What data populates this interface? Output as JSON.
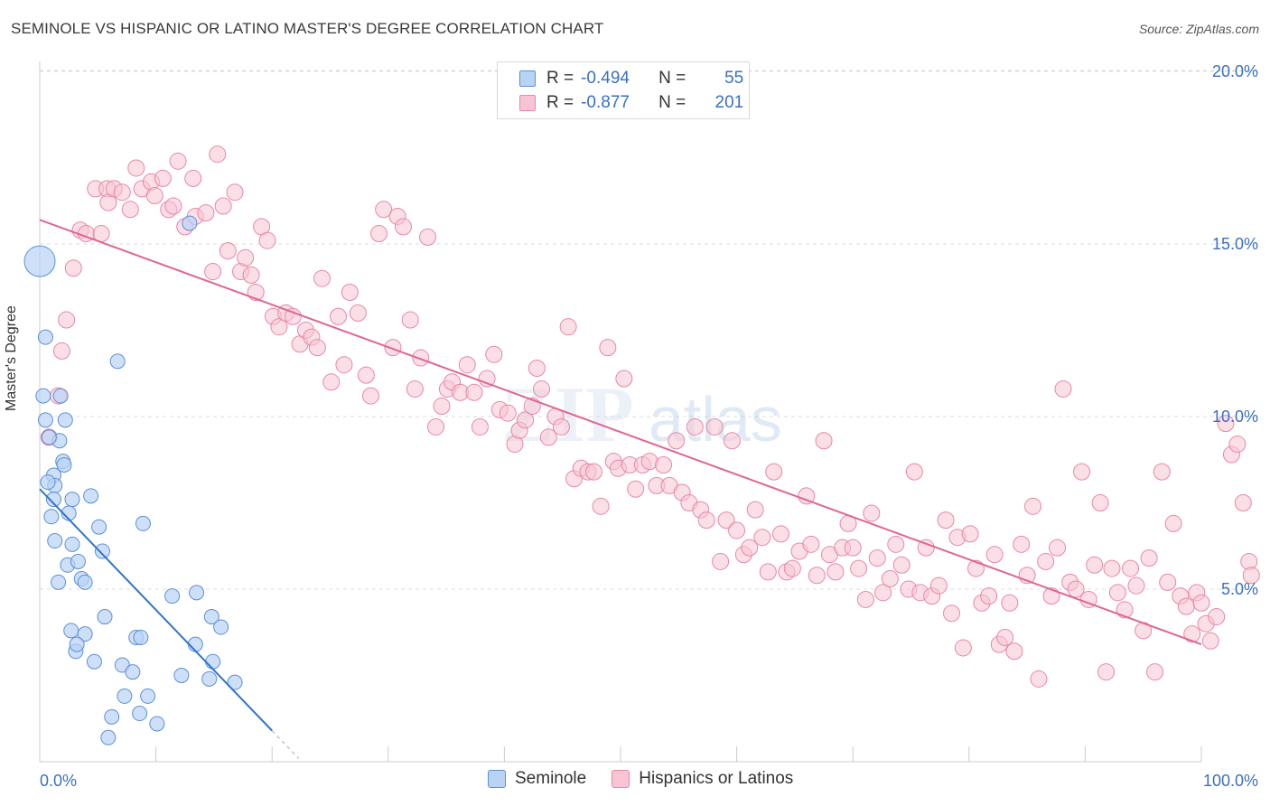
{
  "title": "SEMINOLE VS HISPANIC OR LATINO MASTER'S DEGREE CORRELATION CHART",
  "source": "Source: ZipAtlas.com",
  "colors": {
    "seminole_fill": "#b9d3f5",
    "seminole_stroke": "#5b8fd6",
    "seminole_line": "#2f74d0",
    "hispanic_fill": "#f7c4d4",
    "hispanic_stroke": "#e887a6",
    "hispanic_line": "#e06690",
    "axis_label": "#3b6fc4"
  },
  "legend": {
    "r_label": "R =",
    "n_label": "N =",
    "seminole": {
      "r": "-0.494",
      "n": "55"
    },
    "hispanic": {
      "r": "-0.877",
      "n": "201"
    }
  },
  "chart_data": {
    "type": "scatter",
    "title": "SEMINOLE VS HISPANIC OR LATINO MASTER'S DEGREE CORRELATION CHART",
    "xlabel": "",
    "ylabel": "Master's Degree",
    "xlim": [
      0,
      100
    ],
    "ylim": [
      0,
      20.5
    ],
    "x_tick_labels": [
      "0.0%",
      "100.0%"
    ],
    "y_ticks": [
      5,
      10,
      15,
      20
    ],
    "y_tick_labels": [
      "5.0%",
      "10.0%",
      "15.0%",
      "20.0%"
    ],
    "grid": true,
    "legend_position": "top-center",
    "watermark": "ZIPatlas",
    "series": [
      {
        "name": "Seminole",
        "trend": {
          "x": [
            0,
            20
          ],
          "y": [
            7.9,
            0.9
          ],
          "dashed_extension_to_x": 22.3
        },
        "points": [
          [
            0,
            14.5
          ],
          [
            0.5,
            12.3
          ],
          [
            1.8,
            10.6
          ],
          [
            0.3,
            10.6
          ],
          [
            2.2,
            9.9
          ],
          [
            0.5,
            9.9
          ],
          [
            1.7,
            9.3
          ],
          [
            0.8,
            9.4
          ],
          [
            2,
            8.7
          ],
          [
            2.1,
            8.6
          ],
          [
            1.2,
            8.3
          ],
          [
            1.3,
            8.0
          ],
          [
            1.2,
            7.6
          ],
          [
            2.8,
            7.6
          ],
          [
            4.4,
            7.7
          ],
          [
            1,
            7.1
          ],
          [
            2.5,
            7.2
          ],
          [
            1.3,
            6.4
          ],
          [
            2.8,
            6.3
          ],
          [
            5.1,
            6.8
          ],
          [
            8.9,
            6.9
          ],
          [
            5.4,
            6.1
          ],
          [
            2.4,
            5.7
          ],
          [
            3.3,
            5.8
          ],
          [
            3.6,
            5.3
          ],
          [
            3.9,
            5.2
          ],
          [
            11.4,
            4.8
          ],
          [
            13.5,
            4.9
          ],
          [
            2.7,
            3.8
          ],
          [
            3.9,
            3.7
          ],
          [
            5.6,
            4.2
          ],
          [
            8.3,
            3.6
          ],
          [
            8.7,
            3.6
          ],
          [
            14.8,
            4.2
          ],
          [
            15.6,
            3.9
          ],
          [
            3.1,
            3.2
          ],
          [
            3.2,
            3.4
          ],
          [
            4.7,
            2.9
          ],
          [
            7.1,
            2.8
          ],
          [
            8,
            2.6
          ],
          [
            12.2,
            2.5
          ],
          [
            13.4,
            3.4
          ],
          [
            14.9,
            2.9
          ],
          [
            14.6,
            2.4
          ],
          [
            16.8,
            2.3
          ],
          [
            7.3,
            1.9
          ],
          [
            9.3,
            1.9
          ],
          [
            6.2,
            1.3
          ],
          [
            8.6,
            1.4
          ],
          [
            10.1,
            1.1
          ],
          [
            5.9,
            0.7
          ],
          [
            12.9,
            15.6
          ],
          [
            6.7,
            11.6
          ],
          [
            0.7,
            8.1
          ],
          [
            1.6,
            5.2
          ]
        ]
      },
      {
        "name": "Hispanics or Latinos",
        "trend": {
          "x": [
            0,
            100
          ],
          "y": [
            15.7,
            3.4
          ]
        },
        "points": [
          [
            1.6,
            10.6
          ],
          [
            1.9,
            11.9
          ],
          [
            2.3,
            12.8
          ],
          [
            0.8,
            9.4
          ],
          [
            2.9,
            14.3
          ],
          [
            3.5,
            15.4
          ],
          [
            4,
            15.3
          ],
          [
            5.3,
            15.3
          ],
          [
            4.8,
            16.6
          ],
          [
            5.8,
            16.6
          ],
          [
            5.9,
            16.2
          ],
          [
            6.4,
            16.6
          ],
          [
            7.1,
            16.5
          ],
          [
            7.8,
            16.0
          ],
          [
            8.3,
            17.2
          ],
          [
            8.8,
            16.6
          ],
          [
            9.6,
            16.8
          ],
          [
            9.9,
            16.4
          ],
          [
            10.6,
            16.9
          ],
          [
            11.1,
            16.0
          ],
          [
            11.5,
            16.1
          ],
          [
            11.9,
            17.4
          ],
          [
            12.5,
            15.5
          ],
          [
            13.2,
            16.9
          ],
          [
            13.4,
            15.8
          ],
          [
            14.3,
            15.9
          ],
          [
            14.9,
            14.2
          ],
          [
            15.3,
            17.6
          ],
          [
            15.8,
            16.1
          ],
          [
            16.2,
            14.8
          ],
          [
            16.8,
            16.5
          ],
          [
            17.3,
            14.2
          ],
          [
            17.7,
            14.6
          ],
          [
            18.2,
            14.1
          ],
          [
            18.6,
            13.6
          ],
          [
            19.1,
            15.5
          ],
          [
            19.6,
            15.1
          ],
          [
            20.1,
            12.9
          ],
          [
            20.6,
            12.6
          ],
          [
            21.2,
            13.0
          ],
          [
            21.8,
            12.9
          ],
          [
            22.4,
            12.1
          ],
          [
            22.9,
            12.5
          ],
          [
            23.4,
            12.3
          ],
          [
            23.9,
            12.0
          ],
          [
            24.3,
            14.0
          ],
          [
            25.1,
            11.0
          ],
          [
            25.7,
            12.9
          ],
          [
            26.2,
            11.5
          ],
          [
            26.7,
            13.6
          ],
          [
            27.4,
            13.0
          ],
          [
            28.1,
            11.2
          ],
          [
            28.5,
            10.6
          ],
          [
            29.2,
            15.3
          ],
          [
            29.6,
            16.0
          ],
          [
            30.4,
            12.0
          ],
          [
            30.8,
            15.8
          ],
          [
            31.3,
            15.5
          ],
          [
            31.9,
            12.8
          ],
          [
            32.3,
            10.8
          ],
          [
            32.8,
            11.7
          ],
          [
            33.4,
            15.2
          ],
          [
            34.1,
            9.7
          ],
          [
            34.6,
            10.3
          ],
          [
            35.1,
            10.8
          ],
          [
            35.5,
            11.0
          ],
          [
            36.2,
            10.7
          ],
          [
            36.8,
            11.5
          ],
          [
            37.4,
            10.7
          ],
          [
            37.9,
            9.7
          ],
          [
            38.5,
            11.1
          ],
          [
            39.1,
            11.8
          ],
          [
            39.6,
            10.2
          ],
          [
            40.3,
            10.1
          ],
          [
            40.9,
            9.2
          ],
          [
            41.3,
            9.6
          ],
          [
            41.8,
            9.9
          ],
          [
            42.4,
            10.3
          ],
          [
            42.8,
            11.4
          ],
          [
            43.2,
            10.8
          ],
          [
            43.8,
            9.4
          ],
          [
            44.4,
            10.0
          ],
          [
            44.9,
            9.7
          ],
          [
            45.5,
            12.6
          ],
          [
            46,
            8.2
          ],
          [
            46.6,
            8.5
          ],
          [
            47.2,
            8.4
          ],
          [
            47.7,
            8.4
          ],
          [
            48.3,
            7.4
          ],
          [
            48.9,
            12.0
          ],
          [
            49.4,
            8.7
          ],
          [
            49.8,
            8.5
          ],
          [
            50.3,
            11.1
          ],
          [
            50.8,
            8.6
          ],
          [
            51.3,
            7.9
          ],
          [
            51.9,
            8.6
          ],
          [
            52.5,
            8.7
          ],
          [
            53.1,
            8.0
          ],
          [
            53.7,
            8.6
          ],
          [
            54.2,
            8.0
          ],
          [
            54.8,
            9.3
          ],
          [
            55.3,
            7.8
          ],
          [
            55.9,
            7.5
          ],
          [
            56.4,
            9.7
          ],
          [
            56.9,
            7.3
          ],
          [
            57.4,
            7.0
          ],
          [
            58.1,
            9.7
          ],
          [
            58.6,
            5.8
          ],
          [
            59.1,
            7.0
          ],
          [
            59.6,
            9.3
          ],
          [
            60,
            6.7
          ],
          [
            60.6,
            6.0
          ],
          [
            61.1,
            6.2
          ],
          [
            61.6,
            7.3
          ],
          [
            62.2,
            6.5
          ],
          [
            62.7,
            5.5
          ],
          [
            63.2,
            8.4
          ],
          [
            63.8,
            6.6
          ],
          [
            64.3,
            5.5
          ],
          [
            64.8,
            5.6
          ],
          [
            65.4,
            6.1
          ],
          [
            66,
            7.7
          ],
          [
            66.4,
            6.3
          ],
          [
            66.9,
            5.4
          ],
          [
            67.5,
            9.3
          ],
          [
            68,
            6.0
          ],
          [
            68.5,
            5.5
          ],
          [
            69.1,
            6.2
          ],
          [
            69.6,
            6.9
          ],
          [
            70,
            6.2
          ],
          [
            70.5,
            5.6
          ],
          [
            71.1,
            4.7
          ],
          [
            71.6,
            7.2
          ],
          [
            72.1,
            5.9
          ],
          [
            72.6,
            4.9
          ],
          [
            73.2,
            5.3
          ],
          [
            73.7,
            6.3
          ],
          [
            74.2,
            5.7
          ],
          [
            74.8,
            5.0
          ],
          [
            75.3,
            8.4
          ],
          [
            75.8,
            4.9
          ],
          [
            76.3,
            6.2
          ],
          [
            76.8,
            4.8
          ],
          [
            77.4,
            5.1
          ],
          [
            78,
            7.0
          ],
          [
            78.5,
            4.3
          ],
          [
            79,
            6.5
          ],
          [
            79.5,
            3.3
          ],
          [
            80.1,
            6.6
          ],
          [
            80.6,
            5.6
          ],
          [
            81.1,
            4.6
          ],
          [
            81.7,
            4.8
          ],
          [
            82.2,
            6.0
          ],
          [
            82.6,
            3.4
          ],
          [
            83.1,
            3.6
          ],
          [
            83.5,
            4.6
          ],
          [
            83.9,
            3.2
          ],
          [
            84.5,
            6.3
          ],
          [
            85,
            5.4
          ],
          [
            85.5,
            7.4
          ],
          [
            86,
            2.4
          ],
          [
            86.6,
            5.8
          ],
          [
            87.1,
            4.8
          ],
          [
            87.6,
            6.2
          ],
          [
            88.1,
            10.8
          ],
          [
            88.7,
            5.2
          ],
          [
            89.2,
            5.0
          ],
          [
            89.7,
            8.4
          ],
          [
            90.3,
            4.7
          ],
          [
            90.8,
            5.7
          ],
          [
            91.3,
            7.5
          ],
          [
            91.8,
            2.6
          ],
          [
            92.3,
            5.6
          ],
          [
            92.8,
            4.9
          ],
          [
            93.4,
            4.4
          ],
          [
            93.9,
            5.6
          ],
          [
            94.4,
            5.1
          ],
          [
            95,
            3.8
          ],
          [
            95.5,
            5.9
          ],
          [
            96,
            2.6
          ],
          [
            96.6,
            8.4
          ],
          [
            97.1,
            5.2
          ],
          [
            97.6,
            6.9
          ],
          [
            98.2,
            4.8
          ],
          [
            98.7,
            4.5
          ],
          [
            99.2,
            3.7
          ],
          [
            99.6,
            4.9
          ],
          [
            100,
            4.6
          ],
          [
            100.4,
            4.0
          ],
          [
            100.8,
            3.5
          ],
          [
            101.3,
            4.2
          ],
          [
            102.1,
            9.8
          ],
          [
            102.6,
            8.9
          ],
          [
            103.1,
            9.2
          ],
          [
            103.6,
            7.5
          ],
          [
            104.1,
            5.8
          ],
          [
            104.3,
            5.4
          ]
        ]
      }
    ]
  },
  "bottom_legend": [
    "Seminole",
    "Hispanics or Latinos"
  ]
}
